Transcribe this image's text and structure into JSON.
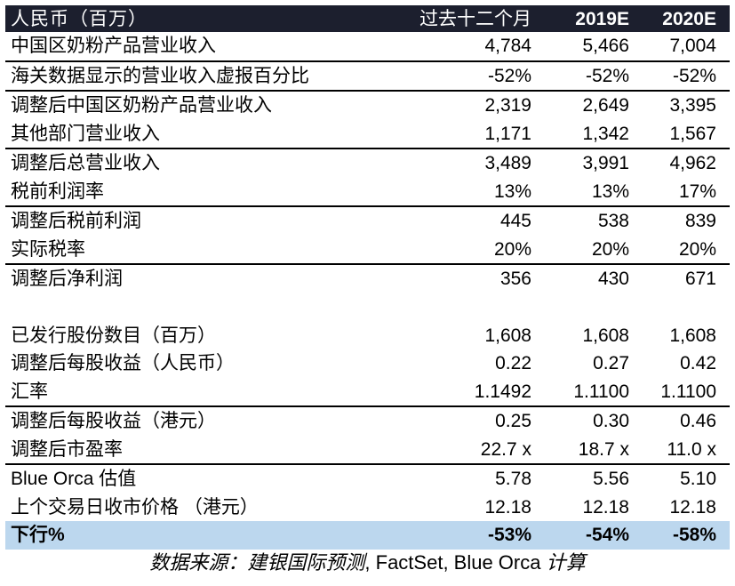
{
  "header": {
    "label": "人民币（百万）",
    "col1": "过去十二个月",
    "col2": "2019E",
    "col3": "2020E"
  },
  "rows": [
    {
      "label": "中国区奶粉产品营业收入",
      "v1": "4,784",
      "v2": "5,466",
      "v3": "7,004"
    },
    {
      "label": "海关数据显示的营业收入虚报百分比",
      "v1": "-52%",
      "v2": "-52%",
      "v3": "-52%"
    },
    {
      "label": "调整后中国区奶粉产品营业收入",
      "v1": "2,319",
      "v2": "2,649",
      "v3": "3,395"
    },
    {
      "label": "其他部门营业收入",
      "v1": "1,171",
      "v2": "1,342",
      "v3": "1,567"
    },
    {
      "label": "调整后总营业收入",
      "v1": "3,489",
      "v2": "3,991",
      "v3": "4,962"
    },
    {
      "label": "税前利润率",
      "v1": "13%",
      "v2": "13%",
      "v3": "17%"
    },
    {
      "label": "调整后税前利润",
      "v1": "445",
      "v2": "538",
      "v3": "839"
    },
    {
      "label": "实际税率",
      "v1": "20%",
      "v2": "20%",
      "v3": "20%"
    },
    {
      "label": "调整后净利润",
      "v1": "356",
      "v2": "430",
      "v3": "671"
    },
    {
      "label": "已发行股份数目（百万）",
      "v1": "1,608",
      "v2": "1,608",
      "v3": "1,608"
    },
    {
      "label": "调整后每股收益（人民币）",
      "v1": "0.22",
      "v2": "0.27",
      "v3": "0.42"
    },
    {
      "label": "汇率",
      "v1": "1.1492",
      "v2": "1.1100",
      "v3": "1.1100"
    },
    {
      "label": "调整后每股收益（港元）",
      "v1": "0.25",
      "v2": "0.30",
      "v3": "0.46"
    },
    {
      "label": "调整后市盈率",
      "v1": "22.7 x",
      "v2": "18.7 x",
      "v3": "11.0 x"
    },
    {
      "label": "Blue Orca 估值",
      "v1": "5.78",
      "v2": "5.56",
      "v3": "5.10"
    },
    {
      "label": "上个交易日收市价格 （港元）",
      "v1": "12.18",
      "v2": "12.18",
      "v3": "12.18"
    }
  ],
  "footer": {
    "label": "下行%",
    "v1": "-53%",
    "v2": "-54%",
    "v3": "-58%"
  },
  "source": {
    "prefix": "数据来源：建银国际预测",
    "middle": ", FactSet, Blue Orca ",
    "suffix": "计算"
  },
  "colors": {
    "header_bg": "#1c1f2e",
    "header_text": "#ffffff",
    "footer_bg": "#bcd7ee"
  }
}
